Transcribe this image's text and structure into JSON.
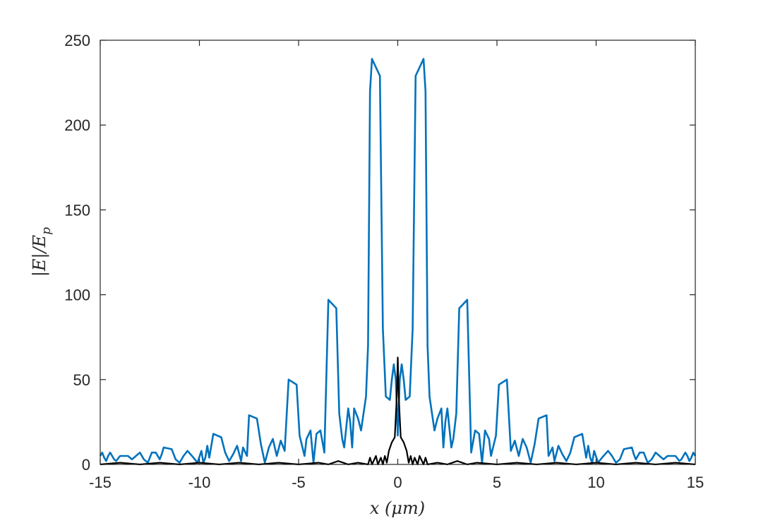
{
  "chart_data": {
    "type": "line",
    "title": "",
    "xlabel": "x (μm)",
    "ylabel": "|E|/E_p",
    "ylabel_parts": {
      "main": "|E|/E",
      "sub": "p"
    },
    "xlim": [
      -15,
      15
    ],
    "ylim": [
      0,
      250
    ],
    "xticks": [
      "-15",
      "-10",
      "-5",
      "0",
      "5",
      "10",
      "15"
    ],
    "yticks": [
      "0",
      "50",
      "100",
      "150",
      "200",
      "250"
    ],
    "grid": false,
    "series": [
      {
        "color": "#0072BD",
        "points": [
          [
            -15.0,
            5
          ],
          [
            -14.9,
            7
          ],
          [
            -14.8,
            4
          ],
          [
            -14.7,
            2
          ],
          [
            -14.6,
            5
          ],
          [
            -14.5,
            7
          ],
          [
            -14.4,
            5
          ],
          [
            -14.3,
            3
          ],
          [
            -14.2,
            2
          ],
          [
            -14.0,
            5
          ],
          [
            -13.6,
            5
          ],
          [
            -13.4,
            3
          ],
          [
            -13.2,
            5
          ],
          [
            -13.0,
            7
          ],
          [
            -12.8,
            3
          ],
          [
            -12.6,
            1
          ],
          [
            -12.4,
            7
          ],
          [
            -12.2,
            7
          ],
          [
            -12.0,
            3
          ],
          [
            -11.9,
            6
          ],
          [
            -11.8,
            10
          ],
          [
            -11.4,
            9
          ],
          [
            -11.2,
            3
          ],
          [
            -11.0,
            1
          ],
          [
            -10.8,
            5
          ],
          [
            -10.6,
            8
          ],
          [
            -10.3,
            4
          ],
          [
            -10.1,
            1
          ],
          [
            -9.9,
            8
          ],
          [
            -9.8,
            1
          ],
          [
            -9.7,
            4
          ],
          [
            -9.6,
            11
          ],
          [
            -9.5,
            4
          ],
          [
            -9.3,
            18
          ],
          [
            -8.9,
            16
          ],
          [
            -8.7,
            7
          ],
          [
            -8.5,
            2
          ],
          [
            -8.3,
            6
          ],
          [
            -8.1,
            11
          ],
          [
            -7.9,
            2
          ],
          [
            -7.8,
            10
          ],
          [
            -7.6,
            5
          ],
          [
            -7.5,
            29
          ],
          [
            -7.1,
            27
          ],
          [
            -6.9,
            12
          ],
          [
            -6.7,
            1
          ],
          [
            -6.5,
            10
          ],
          [
            -6.3,
            15
          ],
          [
            -6.1,
            5
          ],
          [
            -5.9,
            14
          ],
          [
            -5.7,
            8
          ],
          [
            -5.5,
            50
          ],
          [
            -5.1,
            47
          ],
          [
            -4.95,
            17
          ],
          [
            -4.7,
            5
          ],
          [
            -4.6,
            15
          ],
          [
            -4.4,
            20
          ],
          [
            -4.25,
            1
          ],
          [
            -4.1,
            18
          ],
          [
            -3.9,
            20
          ],
          [
            -3.7,
            7
          ],
          [
            -3.5,
            97
          ],
          [
            -3.1,
            92
          ],
          [
            -2.95,
            30
          ],
          [
            -2.8,
            15
          ],
          [
            -2.7,
            10
          ],
          [
            -2.5,
            33
          ],
          [
            -2.4,
            25
          ],
          [
            -2.3,
            10
          ],
          [
            -2.2,
            33
          ],
          [
            -2.0,
            27
          ],
          [
            -1.85,
            20
          ],
          [
            -1.6,
            40
          ],
          [
            -1.5,
            70
          ],
          [
            -1.4,
            220
          ],
          [
            -1.3,
            239
          ],
          [
            -0.9,
            229
          ],
          [
            -0.75,
            80
          ],
          [
            -0.6,
            40
          ],
          [
            -0.4,
            38
          ],
          [
            -0.3,
            50
          ],
          [
            -0.2,
            59
          ],
          [
            -0.1,
            50
          ],
          [
            0.0,
            17
          ],
          [
            0.1,
            50
          ],
          [
            0.2,
            59
          ],
          [
            0.3,
            50
          ],
          [
            0.4,
            38
          ],
          [
            0.6,
            40
          ],
          [
            0.75,
            80
          ],
          [
            0.9,
            229
          ],
          [
            1.3,
            239
          ],
          [
            1.4,
            220
          ],
          [
            1.5,
            70
          ],
          [
            1.6,
            40
          ],
          [
            1.85,
            20
          ],
          [
            2.0,
            27
          ],
          [
            2.2,
            33
          ],
          [
            2.3,
            10
          ],
          [
            2.4,
            25
          ],
          [
            2.5,
            33
          ],
          [
            2.7,
            10
          ],
          [
            2.8,
            15
          ],
          [
            2.95,
            30
          ],
          [
            3.1,
            92
          ],
          [
            3.5,
            97
          ],
          [
            3.7,
            7
          ],
          [
            3.9,
            20
          ],
          [
            4.1,
            18
          ],
          [
            4.25,
            1
          ],
          [
            4.4,
            20
          ],
          [
            4.6,
            15
          ],
          [
            4.7,
            5
          ],
          [
            4.95,
            17
          ],
          [
            5.1,
            47
          ],
          [
            5.5,
            50
          ],
          [
            5.7,
            8
          ],
          [
            5.9,
            14
          ],
          [
            6.1,
            5
          ],
          [
            6.3,
            15
          ],
          [
            6.5,
            10
          ],
          [
            6.7,
            1
          ],
          [
            6.9,
            12
          ],
          [
            7.1,
            27
          ],
          [
            7.5,
            29
          ],
          [
            7.6,
            5
          ],
          [
            7.8,
            10
          ],
          [
            7.9,
            2
          ],
          [
            8.1,
            11
          ],
          [
            8.3,
            6
          ],
          [
            8.5,
            2
          ],
          [
            8.7,
            7
          ],
          [
            8.9,
            16
          ],
          [
            9.3,
            18
          ],
          [
            9.5,
            4
          ],
          [
            9.6,
            11
          ],
          [
            9.7,
            4
          ],
          [
            9.8,
            1
          ],
          [
            9.9,
            8
          ],
          [
            10.1,
            1
          ],
          [
            10.3,
            4
          ],
          [
            10.6,
            8
          ],
          [
            10.8,
            5
          ],
          [
            11.0,
            1
          ],
          [
            11.2,
            3
          ],
          [
            11.4,
            9
          ],
          [
            11.8,
            10
          ],
          [
            11.9,
            6
          ],
          [
            12.0,
            3
          ],
          [
            12.2,
            7
          ],
          [
            12.4,
            7
          ],
          [
            12.6,
            1
          ],
          [
            12.8,
            3
          ],
          [
            13.0,
            7
          ],
          [
            13.2,
            5
          ],
          [
            13.4,
            3
          ],
          [
            13.6,
            5
          ],
          [
            14.0,
            5
          ],
          [
            14.2,
            2
          ],
          [
            14.3,
            3
          ],
          [
            14.4,
            5
          ],
          [
            14.5,
            7
          ],
          [
            14.6,
            5
          ],
          [
            14.7,
            2
          ],
          [
            14.8,
            4
          ],
          [
            14.9,
            7
          ],
          [
            15.0,
            5
          ]
        ]
      },
      {
        "color": "#000000",
        "points": [
          [
            -15.0,
            0
          ],
          [
            -14.0,
            1
          ],
          [
            -13.0,
            0
          ],
          [
            -12.0,
            1
          ],
          [
            -11.0,
            0
          ],
          [
            -10.0,
            1
          ],
          [
            -9.0,
            0
          ],
          [
            -8.0,
            1
          ],
          [
            -7.0,
            0
          ],
          [
            -6.0,
            1
          ],
          [
            -5.0,
            0
          ],
          [
            -4.0,
            1
          ],
          [
            -3.5,
            0
          ],
          [
            -3.0,
            2
          ],
          [
            -2.5,
            0
          ],
          [
            -2.0,
            1
          ],
          [
            -1.5,
            0
          ],
          [
            -1.4,
            4
          ],
          [
            -1.3,
            0
          ],
          [
            -1.1,
            5
          ],
          [
            -1.0,
            0
          ],
          [
            -0.85,
            4
          ],
          [
            -0.75,
            0
          ],
          [
            -0.65,
            5
          ],
          [
            -0.55,
            1
          ],
          [
            -0.45,
            8
          ],
          [
            -0.3,
            13
          ],
          [
            -0.15,
            16
          ],
          [
            -0.05,
            40
          ],
          [
            0.0,
            63
          ],
          [
            0.05,
            40
          ],
          [
            0.15,
            16
          ],
          [
            0.3,
            13
          ],
          [
            0.45,
            8
          ],
          [
            0.55,
            1
          ],
          [
            0.65,
            5
          ],
          [
            0.75,
            0
          ],
          [
            0.85,
            4
          ],
          [
            1.0,
            0
          ],
          [
            1.1,
            5
          ],
          [
            1.3,
            0
          ],
          [
            1.4,
            4
          ],
          [
            1.5,
            0
          ],
          [
            2.0,
            1
          ],
          [
            2.5,
            0
          ],
          [
            3.0,
            2
          ],
          [
            3.5,
            0
          ],
          [
            4.0,
            1
          ],
          [
            5.0,
            0
          ],
          [
            6.0,
            1
          ],
          [
            7.0,
            0
          ],
          [
            8.0,
            1
          ],
          [
            9.0,
            0
          ],
          [
            10.0,
            1
          ],
          [
            11.0,
            0
          ],
          [
            12.0,
            1
          ],
          [
            13.0,
            0
          ],
          [
            14.0,
            1
          ],
          [
            15.0,
            0
          ]
        ]
      }
    ]
  }
}
